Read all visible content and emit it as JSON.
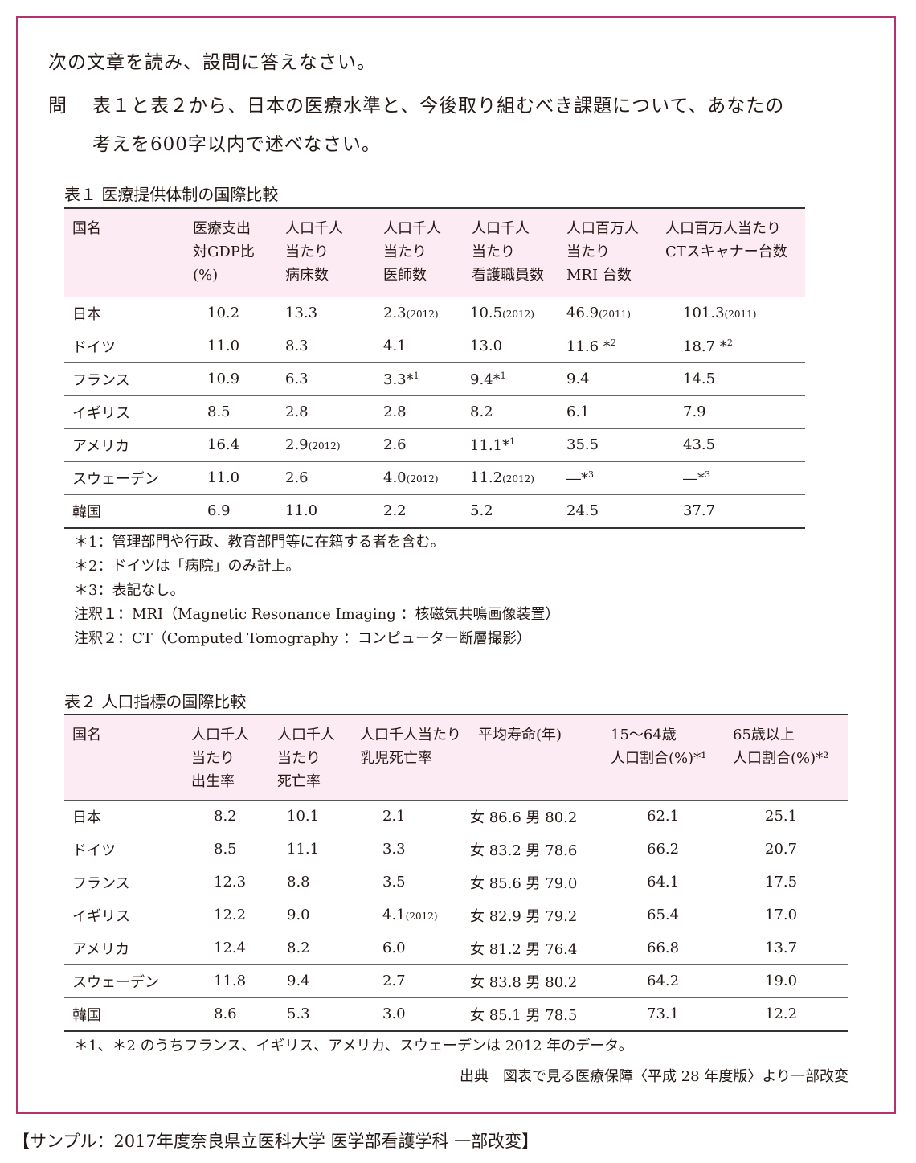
{
  "instruction": "次の文章を読み、設問に答えなさい。",
  "question": {
    "label": "問",
    "line1": "表１と表２から、日本の医療水準と、今後取り組むべき課題について、あなたの",
    "line2": "考えを600字以内で述べなさい。"
  },
  "table1": {
    "caption": "表１ 医療提供体制の国際比較",
    "headers": [
      "国名",
      "医療支出\n対GDP比\n(%)",
      "人口千人\n当たり\n病床数",
      "人口千人\n当たり\n医師数",
      "人口千人\n当たり\n看護職員数",
      "人口百万人\n当たり\nMRI 台数",
      "人口百万人当たり\nCTスキャナー台数"
    ],
    "rows": [
      [
        [
          "日本",
          ""
        ],
        [
          "10.2",
          ""
        ],
        [
          "13.3",
          ""
        ],
        [
          "2.3",
          "(2012)"
        ],
        [
          "10.5",
          "(2012)"
        ],
        [
          "46.9",
          "(2011)"
        ],
        [
          "101.3",
          "(2011)"
        ]
      ],
      [
        [
          "ドイツ",
          ""
        ],
        [
          "11.0",
          ""
        ],
        [
          "8.3",
          ""
        ],
        [
          "4.1",
          ""
        ],
        [
          "13.0",
          ""
        ],
        [
          "11.6 *",
          "2"
        ],
        [
          "18.7 *",
          "2"
        ]
      ],
      [
        [
          "フランス",
          ""
        ],
        [
          "10.9",
          ""
        ],
        [
          "6.3",
          ""
        ],
        [
          "3.3*",
          "1"
        ],
        [
          "9.4*",
          "1"
        ],
        [
          "9.4",
          ""
        ],
        [
          "14.5",
          ""
        ]
      ],
      [
        [
          "イギリス",
          ""
        ],
        [
          "8.5",
          ""
        ],
        [
          "2.8",
          ""
        ],
        [
          "2.8",
          ""
        ],
        [
          "8.2",
          ""
        ],
        [
          "6.1",
          ""
        ],
        [
          "7.9",
          ""
        ]
      ],
      [
        [
          "アメリカ",
          ""
        ],
        [
          "16.4",
          ""
        ],
        [
          "2.9",
          "(2012)"
        ],
        [
          "2.6",
          ""
        ],
        [
          "11.1*",
          "1"
        ],
        [
          "35.5",
          ""
        ],
        [
          "43.5",
          ""
        ]
      ],
      [
        [
          "スウェーデン",
          ""
        ],
        [
          "11.0",
          ""
        ],
        [
          "2.6",
          ""
        ],
        [
          "4.0",
          "(2012)"
        ],
        [
          "11.2",
          "(2012)"
        ],
        [
          "―*",
          "3"
        ],
        [
          "―*",
          "3"
        ]
      ],
      [
        [
          "韓国",
          ""
        ],
        [
          "6.9",
          ""
        ],
        [
          "11.0",
          ""
        ],
        [
          "2.2",
          ""
        ],
        [
          "5.2",
          ""
        ],
        [
          "24.5",
          ""
        ],
        [
          "37.7",
          ""
        ]
      ]
    ],
    "notes": [
      "＊1：管理部門や行政、教育部門等に在籍する者を含む。",
      "＊2：ドイツは「病院」のみ計上。",
      "＊3：表記なし。",
      "注釈１：MRI（Magnetic Resonance Imaging ：核磁気共鳴画像装置）",
      "注釈２：CT（Computed Tomography ：コンピューター断層撮影）"
    ]
  },
  "table2": {
    "caption": "表２ 人口指標の国際比較",
    "headers": [
      "国名",
      "人口千人\n当たり\n出生率",
      "人口千人\n当たり\n死亡率",
      "人口千人当たり\n乳児死亡率",
      "平均寿命(年)",
      "15〜64歳\n人口割合(%)*¹",
      "65歳以上\n人口割合(%)*²"
    ],
    "rows": [
      [
        [
          "日本",
          ""
        ],
        [
          "8.2",
          ""
        ],
        [
          "10.1",
          ""
        ],
        [
          "2.1",
          ""
        ],
        [
          "女 86.6  男 80.2",
          ""
        ],
        [
          "62.1",
          ""
        ],
        [
          "25.1",
          ""
        ]
      ],
      [
        [
          "ドイツ",
          ""
        ],
        [
          "8.5",
          ""
        ],
        [
          "11.1",
          ""
        ],
        [
          "3.3",
          ""
        ],
        [
          "女 83.2  男 78.6",
          ""
        ],
        [
          "66.2",
          ""
        ],
        [
          "20.7",
          ""
        ]
      ],
      [
        [
          "フランス",
          ""
        ],
        [
          "12.3",
          ""
        ],
        [
          "8.8",
          ""
        ],
        [
          "3.5",
          ""
        ],
        [
          "女 85.6  男 79.0",
          ""
        ],
        [
          "64.1",
          ""
        ],
        [
          "17.5",
          ""
        ]
      ],
      [
        [
          "イギリス",
          ""
        ],
        [
          "12.2",
          ""
        ],
        [
          "9.0",
          ""
        ],
        [
          "4.1",
          "(2012)"
        ],
        [
          "女 82.9  男 79.2",
          ""
        ],
        [
          "65.4",
          ""
        ],
        [
          "17.0",
          ""
        ]
      ],
      [
        [
          "アメリカ",
          ""
        ],
        [
          "12.4",
          ""
        ],
        [
          "8.2",
          ""
        ],
        [
          "6.0",
          ""
        ],
        [
          "女 81.2  男 76.4",
          ""
        ],
        [
          "66.8",
          ""
        ],
        [
          "13.7",
          ""
        ]
      ],
      [
        [
          "スウェーデン",
          ""
        ],
        [
          "11.8",
          ""
        ],
        [
          "9.4",
          ""
        ],
        [
          "2.7",
          ""
        ],
        [
          "女 83.8  男 80.2",
          ""
        ],
        [
          "64.2",
          ""
        ],
        [
          "19.0",
          ""
        ]
      ],
      [
        [
          "韓国",
          ""
        ],
        [
          "8.6",
          ""
        ],
        [
          "5.3",
          ""
        ],
        [
          "3.0",
          ""
        ],
        [
          "女 85.1  男 78.5",
          ""
        ],
        [
          "73.1",
          ""
        ],
        [
          "12.2",
          ""
        ]
      ]
    ],
    "note": "＊1、＊2 のうちフランス、イギリス、アメリカ、スウェーデンは 2012 年のデータ。",
    "source": "出典　図表で見る医療保障〈平成 28 年度版〉より一部改変"
  },
  "footer": "【サンプル：2017年度奈良県立医科大学 医学部看護学科 一部改変】",
  "colors": {
    "frame": "#b3336e",
    "header_bg": "#fcebf2"
  }
}
